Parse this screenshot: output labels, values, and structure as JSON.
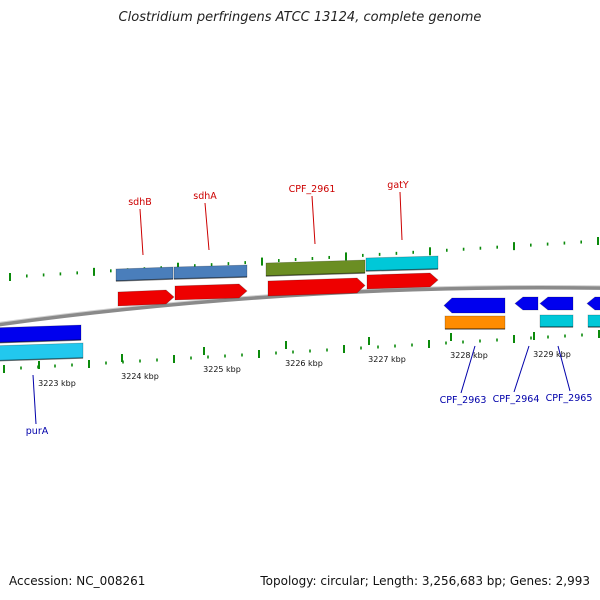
{
  "title": "Clostridium perfringens ATCC 13124, complete genome",
  "footer": {
    "accession": "Accession: NC_008261",
    "summary": "Topology: circular; Length: 3,256,683 bp; Genes: 2,993"
  },
  "colors": {
    "backbone": "#8a8a8a",
    "tick": "#0b8a0b",
    "top_label": "#cc0000",
    "bottom_label": "#0000aa",
    "steelblue": "#4a7ebb",
    "red": "#ee0000",
    "olive": "#6b8e23",
    "cyan": "#00c8d8",
    "blue": "#0000ee",
    "lightblue": "#22c8ee",
    "orange": "#ff8c00"
  },
  "kbp_ticks": [
    "3223 kbp",
    "3224 kbp",
    "3225 kbp",
    "3226 kbp",
    "3227 kbp",
    "3228 kbp",
    "3229 kbp"
  ],
  "features": [
    {
      "label": "purA",
      "side": "bottom"
    },
    {
      "label": "sdhB",
      "side": "top"
    },
    {
      "label": "sdhA",
      "side": "top"
    },
    {
      "label": "CPF_2961",
      "side": "top"
    },
    {
      "label": "gatY",
      "side": "top"
    },
    {
      "label": "CPF_2963",
      "side": "bottom"
    },
    {
      "label": "CPF_2964",
      "side": "bottom"
    },
    {
      "label": "CPF_2965",
      "side": "bottom"
    }
  ]
}
